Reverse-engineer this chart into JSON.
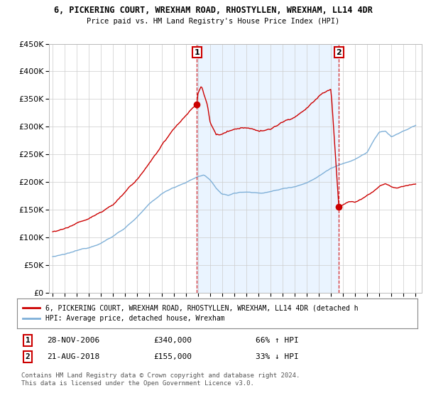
{
  "title": "6, PICKERING COURT, WREXHAM ROAD, RHOSTYLLEN, WREXHAM, LL14 4DR",
  "subtitle": "Price paid vs. HM Land Registry's House Price Index (HPI)",
  "sale1_date_x": 2006.92,
  "sale1_price": 340000,
  "sale1_label": "28-NOV-2006",
  "sale1_amount": "£340,000",
  "sale1_hpi": "66% ↑ HPI",
  "sale2_date_x": 2018.65,
  "sale2_price": 155000,
  "sale2_label": "21-AUG-2018",
  "sale2_amount": "£155,000",
  "sale2_hpi": "33% ↓ HPI",
  "house_color": "#cc0000",
  "hpi_color": "#7fb0d8",
  "vline_color": "#cc0000",
  "shade_color": "#ddeeff",
  "background_color": "#ffffff",
  "grid_color": "#cccccc",
  "ylim": [
    0,
    450000
  ],
  "xlim_start": 1994.7,
  "xlim_end": 2025.5,
  "legend_house_label": "6, PICKERING COURT, WREXHAM ROAD, RHOSTYLLEN, WREXHAM, LL14 4DR (detached h",
  "legend_hpi_label": "HPI: Average price, detached house, Wrexham",
  "footer1": "Contains HM Land Registry data © Crown copyright and database right 2024.",
  "footer2": "This data is licensed under the Open Government Licence v3.0."
}
